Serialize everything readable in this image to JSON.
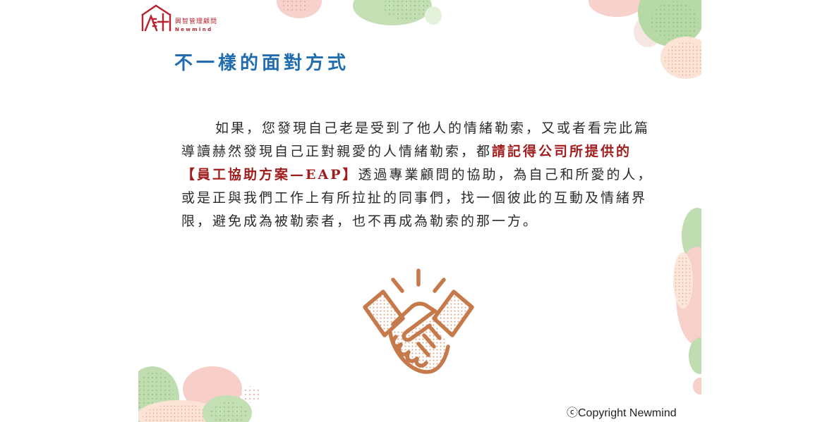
{
  "logo": {
    "icon": "newmind-house-logo",
    "name_cn": "興智管理顧問",
    "name_en": "Newmind"
  },
  "title": "不一樣的面對方式",
  "paragraph": {
    "lines": [
      {
        "segments": [
          {
            "text": "如果，您發現自己老是受到了他人的情緒勒索，又或者看完此篇",
            "highlight": false
          }
        ]
      },
      {
        "segments": [
          {
            "text": "導讀赫然發現自己正對親愛的人情緒勒索，都",
            "highlight": false
          },
          {
            "text": "請記得公司所提供的",
            "highlight": true
          }
        ]
      },
      {
        "segments": [
          {
            "text": "【員工協助方案—EAP】",
            "highlight": true
          },
          {
            "text": "透過專業顧問的協助，為自己和所愛的人，",
            "highlight": false
          }
        ]
      },
      {
        "segments": [
          {
            "text": "或是正與我們工作上有所拉扯的同事們，找一個彼此的互動及情緒界",
            "highlight": false
          }
        ]
      },
      {
        "segments": [
          {
            "text": "限，避免成為被勒索者，也不再成為勒索的那一方。",
            "highlight": false
          }
        ]
      }
    ]
  },
  "illustration": {
    "icon": "handshake-icon"
  },
  "footer": {
    "copyright": "ⓒCopyright Newmind"
  },
  "colors": {
    "title": "#1F6DB0",
    "text": "#2B2B2B",
    "highlight": "#A11D1D",
    "logo": "#B8232F",
    "handshake": "#C67A4C",
    "decor_pink": "#F7D1CB",
    "decor_green": "#BFDDB0",
    "decor_peach": "#FBE3D6"
  }
}
